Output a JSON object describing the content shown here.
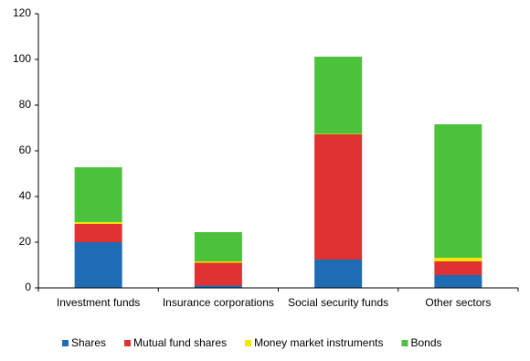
{
  "chart_data": {
    "type": "stacked_bar",
    "categories": [
      "Investment funds",
      "Insurance corporations",
      "Social security funds",
      "Other sectors"
    ],
    "series": [
      {
        "name": "Shares",
        "color": "#1f6cb4",
        "values": [
          20,
          1,
          12.4,
          5.6
        ]
      },
      {
        "name": "Mutual fund shares",
        "color": "#e03232",
        "values": [
          8,
          10,
          54.8,
          6
        ]
      },
      {
        "name": "Money market instruments",
        "color": "#f5e400",
        "values": [
          0.8,
          0.6,
          0.2,
          1.6
        ]
      },
      {
        "name": "Bonds",
        "color": "#4cc23c",
        "values": [
          24,
          12.8,
          33.8,
          58.4
        ]
      }
    ],
    "ylim": [
      0,
      120
    ],
    "yticks": [
      0,
      20,
      40,
      60,
      80,
      100,
      120
    ],
    "grid": false,
    "legend": "bottom"
  }
}
